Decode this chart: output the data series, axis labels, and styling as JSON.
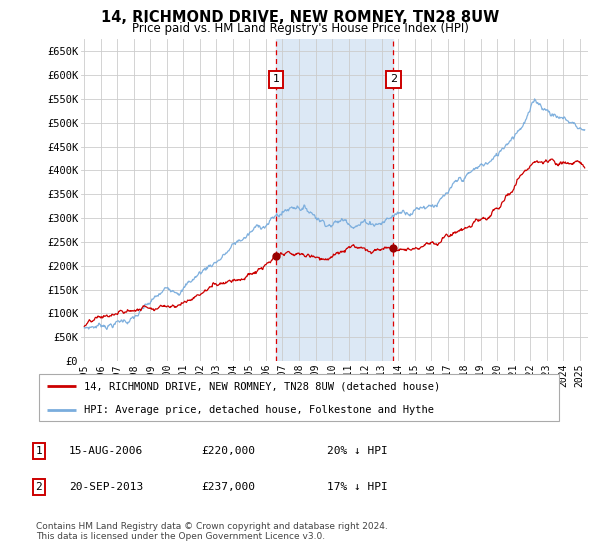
{
  "title": "14, RICHMOND DRIVE, NEW ROMNEY, TN28 8UW",
  "subtitle": "Price paid vs. HM Land Registry's House Price Index (HPI)",
  "ylabel_ticks": [
    "£0",
    "£50K",
    "£100K",
    "£150K",
    "£200K",
    "£250K",
    "£300K",
    "£350K",
    "£400K",
    "£450K",
    "£500K",
    "£550K",
    "£600K",
    "£650K"
  ],
  "ylim": [
    0,
    675000
  ],
  "xlim_start": 1994.8,
  "xlim_end": 2025.5,
  "sale1_x": 2006.62,
  "sale1_y": 220000,
  "sale2_x": 2013.72,
  "sale2_y": 237000,
  "grid_color": "#cccccc",
  "span_color": "#dce8f5",
  "hpi_color": "#7aaddd",
  "sale_color": "#cc0000",
  "legend_line1": "14, RICHMOND DRIVE, NEW ROMNEY, TN28 8UW (detached house)",
  "legend_line2": "HPI: Average price, detached house, Folkestone and Hythe",
  "table_row1": [
    "1",
    "15-AUG-2006",
    "£220,000",
    "20% ↓ HPI"
  ],
  "table_row2": [
    "2",
    "20-SEP-2013",
    "£237,000",
    "17% ↓ HPI"
  ],
  "footnote": "Contains HM Land Registry data © Crown copyright and database right 2024.\nThis data is licensed under the Open Government Licence v3.0.",
  "xticks": [
    1995,
    1996,
    1997,
    1998,
    1999,
    2000,
    2001,
    2002,
    2003,
    2004,
    2005,
    2006,
    2007,
    2008,
    2009,
    2010,
    2011,
    2012,
    2013,
    2014,
    2015,
    2016,
    2017,
    2018,
    2019,
    2020,
    2021,
    2022,
    2023,
    2024,
    2025
  ]
}
